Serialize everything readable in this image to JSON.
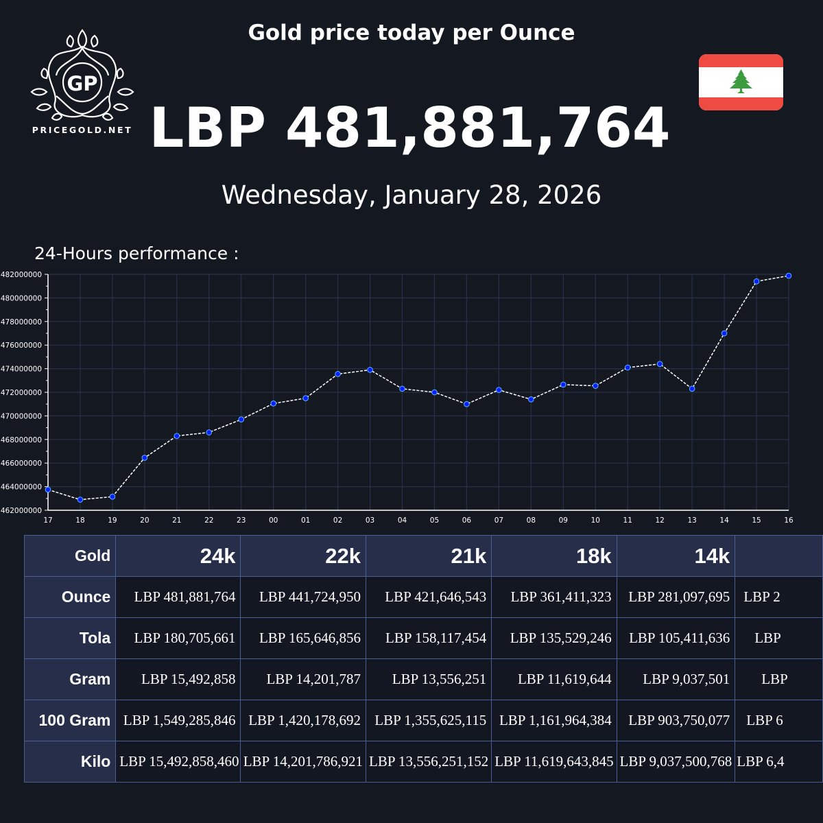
{
  "brand": {
    "logo_monogram": "GP",
    "logo_text": "PRICEGOLD.NET",
    "logo_icon": "laurel-wreath-logo-icon"
  },
  "header": {
    "title": "Gold price today per Ounce",
    "price": "LBP 481,881,764",
    "date": "Wednesday, January 28, 2026",
    "flag_icon": "lebanon-flag-icon"
  },
  "colors": {
    "background": "#141821",
    "header_cell": "#262e49",
    "body_cell": "#131722",
    "cell_border": "#4a5f95",
    "grid": "#2a3048",
    "marker_fill": "#0a1fff",
    "marker_edge": "#5ab4ff",
    "line": "#ffffff",
    "flag_red": "#ef4b43",
    "flag_green": "#3b9b3f"
  },
  "performance": {
    "label": "24-Hours performance :"
  },
  "chart_data": {
    "type": "line",
    "title": "24-Hours performance :",
    "xlabel": "",
    "ylabel": "",
    "x": [
      "17",
      "18",
      "19",
      "20",
      "21",
      "22",
      "23",
      "00",
      "01",
      "02",
      "03",
      "04",
      "05",
      "06",
      "07",
      "08",
      "09",
      "10",
      "11",
      "12",
      "13",
      "14",
      "15",
      "16"
    ],
    "values": [
      463750000,
      462900000,
      463150000,
      466450000,
      468300000,
      468600000,
      469700000,
      471050000,
      471500000,
      473550000,
      473900000,
      472300000,
      472000000,
      471000000,
      472200000,
      471400000,
      472650000,
      472550000,
      474100000,
      474400000,
      472300000,
      477000000,
      481400000,
      481881764
    ],
    "ylim": [
      462000000,
      482000000
    ],
    "yticks": [
      "462000000",
      "464000000",
      "466000000",
      "468000000",
      "470000000",
      "472000000",
      "474000000",
      "476000000",
      "478000000",
      "480000000",
      "482000000"
    ],
    "grid": true,
    "line_style": "dashed",
    "marker": "circle"
  },
  "table": {
    "corner": "Gold",
    "columns": [
      "24k",
      "22k",
      "21k",
      "18k",
      "14k",
      ""
    ],
    "rows": [
      {
        "label": "Ounce",
        "values": [
          "LBP 481,881,764",
          "LBP 441,724,950",
          "LBP 421,646,543",
          "LBP 361,411,323",
          "LBP 281,097,695",
          "LBP 2"
        ]
      },
      {
        "label": "Tola",
        "values": [
          "LBP 180,705,661",
          "LBP 165,646,856",
          "LBP 158,117,454",
          "LBP 135,529,246",
          "LBP 105,411,636",
          "LBP"
        ]
      },
      {
        "label": "Gram",
        "values": [
          "LBP 15,492,858",
          "LBP 14,201,787",
          "LBP 13,556,251",
          "LBP 11,619,644",
          "LBP 9,037,501",
          "LBP"
        ]
      },
      {
        "label": "100 Gram",
        "values": [
          "LBP 1,549,285,846",
          "LBP 1,420,178,692",
          "LBP 1,355,625,115",
          "LBP 1,161,964,384",
          "LBP 903,750,077",
          "LBP 6"
        ]
      },
      {
        "label": "Kilo",
        "values": [
          "LBP 15,492,858,460",
          "LBP 14,201,786,921",
          "LBP 13,556,251,152",
          "LBP 11,619,643,845",
          "LBP 9,037,500,768",
          "LBP 6,4"
        ]
      }
    ]
  }
}
